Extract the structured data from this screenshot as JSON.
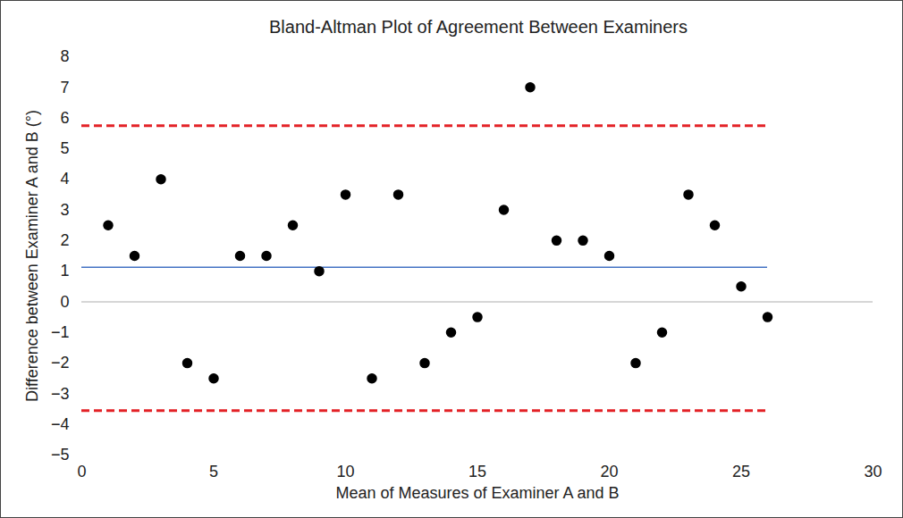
{
  "chart_data": {
    "type": "scatter",
    "title": "Bland-Altman Plot of Agreement Between Examiners",
    "x_label": "Mean of Measures of Examiner A and B",
    "y_label": "Difference between Examiner A and B (°)",
    "x": [
      1,
      2,
      3,
      4,
      5,
      6,
      7,
      8,
      9,
      10,
      11,
      12,
      13,
      14,
      15,
      16,
      17,
      18,
      19,
      20,
      21,
      22,
      23,
      24,
      25,
      26
    ],
    "values": [
      2.5,
      1.5,
      4,
      -2,
      -2.5,
      1.5,
      1.5,
      2.5,
      1,
      3.5,
      -2.5,
      3.5,
      -2,
      -1,
      -0.5,
      3,
      7,
      2,
      2,
      1.5,
      -2,
      -1,
      3.5,
      2.5,
      0.5,
      -0.5
    ],
    "color": "#000000",
    "marker": "circle",
    "reference_lines": [
      {
        "value": 1.13,
        "color": "#4472c4",
        "line_style": "solid"
      },
      {
        "value": 5.75,
        "color": "#e32227",
        "line_style": "dashed"
      },
      {
        "value": -3.55,
        "color": "#e32227",
        "line_style": "dashed"
      }
    ],
    "xlim": [
      0,
      30
    ],
    "xticks": [
      0,
      5,
      10,
      15,
      20,
      25,
      30
    ],
    "ylim": [
      -5,
      8
    ],
    "yticks": [
      -5,
      -4,
      -3,
      -2,
      -1,
      0,
      1,
      2,
      3,
      4,
      5,
      6,
      7,
      8
    ],
    "grid": false
  }
}
